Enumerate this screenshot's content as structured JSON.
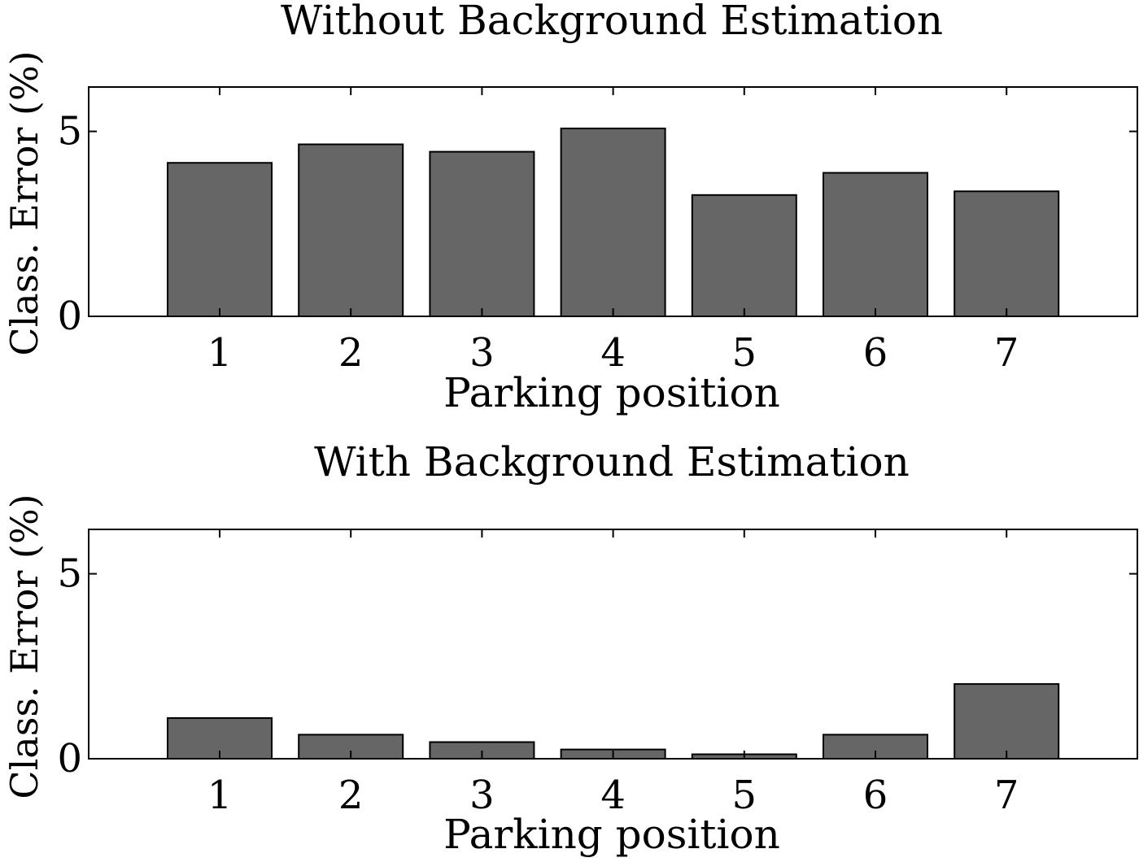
{
  "chart_data": [
    {
      "type": "bar",
      "title": "Without Background Estimation",
      "xlabel": "Parking position",
      "ylabel": "Class. Error (%)",
      "categories": [
        "1",
        "2",
        "3",
        "4",
        "5",
        "6",
        "7"
      ],
      "values": [
        4.15,
        4.65,
        4.45,
        5.08,
        3.28,
        3.88,
        3.38
      ],
      "ylim": [
        0,
        6.2
      ],
      "yticks": [
        "0",
        "5"
      ],
      "bar_color": "#666666",
      "grid": false,
      "legend": "none"
    },
    {
      "type": "bar",
      "title": "With Background Estimation",
      "xlabel": "Parking position",
      "ylabel": "Class. Error (%)",
      "categories": [
        "1",
        "2",
        "3",
        "4",
        "5",
        "6",
        "7"
      ],
      "values": [
        1.1,
        0.65,
        0.45,
        0.25,
        0.12,
        0.65,
        2.02
      ],
      "ylim": [
        0,
        6.2
      ],
      "yticks": [
        "0",
        "5"
      ],
      "bar_color": "#666666",
      "grid": false,
      "legend": "none"
    }
  ]
}
